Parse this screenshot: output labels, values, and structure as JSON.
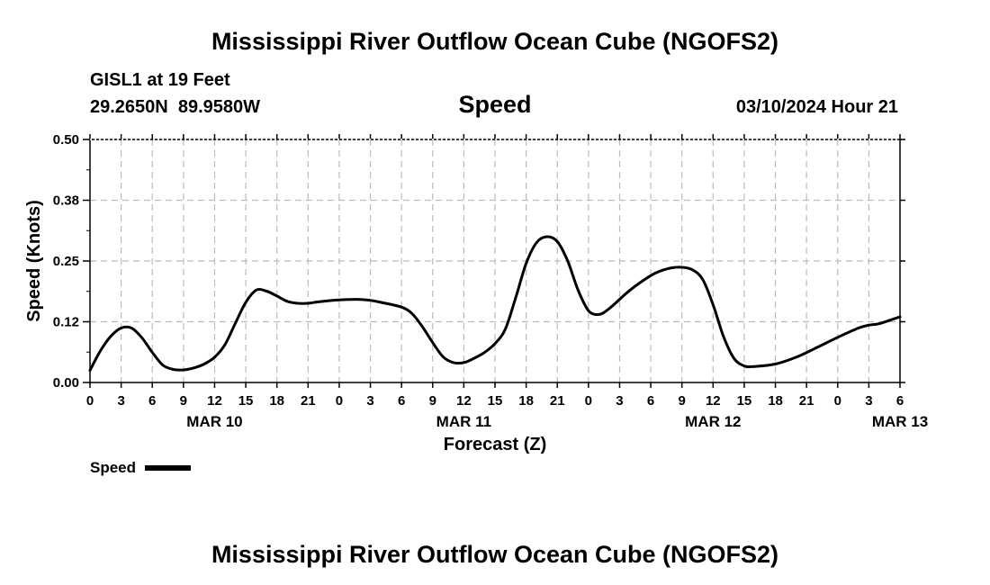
{
  "chart_data": {
    "type": "line",
    "title": "Mississippi River Outflow Ocean Cube (NGOFS2)",
    "footer_title": "Mississippi River Outflow Ocean Cube (NGOFS2)",
    "station_line1": "GISL1 at 19 Feet",
    "station_line2": "29.2650N  89.9580W",
    "subtitle": "Speed",
    "datetime": "03/10/2024 Hour 21",
    "ylabel": "Speed (Knots)",
    "xlabel": "Forecast (Z)",
    "ylim": [
      0,
      0.5
    ],
    "xlim": [
      0,
      78
    ],
    "yticks": [
      0,
      0.125,
      0.25,
      0.375,
      0.5
    ],
    "ytick_labels": [
      "0.00",
      "0.12",
      "0.25",
      "0.38",
      "0.50"
    ],
    "xticks": [
      0,
      3,
      6,
      9,
      12,
      15,
      18,
      21,
      24,
      27,
      30,
      33,
      36,
      39,
      42,
      45,
      48,
      51,
      54,
      57,
      60,
      63,
      66,
      69,
      72,
      75,
      78
    ],
    "xtick_labels": [
      "0",
      "3",
      "6",
      "9",
      "12",
      "15",
      "18",
      "21",
      "0",
      "3",
      "6",
      "9",
      "12",
      "15",
      "18",
      "21",
      "0",
      "3",
      "6",
      "9",
      "12",
      "15",
      "18",
      "21",
      "0",
      "3",
      "6"
    ],
    "date_labels": [
      {
        "hour": 12,
        "label": "MAR 10"
      },
      {
        "hour": 36,
        "label": "MAR 11"
      },
      {
        "hour": 60,
        "label": "MAR 12"
      },
      {
        "hour": 78,
        "label": "MAR 13"
      }
    ],
    "grid": true,
    "legend": {
      "label": "Speed",
      "placement": "bottom-left"
    },
    "series": [
      {
        "name": "Speed",
        "color": "#000000",
        "x": [
          0,
          1,
          2,
          3,
          4,
          5,
          6,
          7,
          8,
          9,
          10,
          11,
          12,
          13,
          14,
          15,
          16,
          17,
          18,
          19,
          20,
          21,
          22,
          24,
          26,
          27,
          28,
          30,
          31,
          32,
          33,
          34,
          35,
          36,
          37,
          38,
          39,
          40,
          41,
          42,
          43,
          44,
          45,
          46,
          47,
          48,
          49,
          50,
          52,
          54,
          55,
          56,
          57,
          58,
          59,
          60,
          61,
          62,
          63,
          64,
          66,
          68,
          70,
          72,
          74,
          75,
          76,
          77,
          78
        ],
        "values": [
          0.025,
          0.065,
          0.095,
          0.112,
          0.112,
          0.092,
          0.062,
          0.036,
          0.027,
          0.026,
          0.03,
          0.038,
          0.052,
          0.078,
          0.122,
          0.165,
          0.19,
          0.188,
          0.178,
          0.167,
          0.163,
          0.163,
          0.166,
          0.17,
          0.171,
          0.169,
          0.165,
          0.155,
          0.142,
          0.115,
          0.082,
          0.053,
          0.041,
          0.041,
          0.05,
          0.062,
          0.08,
          0.11,
          0.175,
          0.245,
          0.288,
          0.3,
          0.29,
          0.25,
          0.19,
          0.148,
          0.14,
          0.152,
          0.19,
          0.22,
          0.23,
          0.236,
          0.237,
          0.232,
          0.212,
          0.16,
          0.095,
          0.05,
          0.034,
          0.033,
          0.038,
          0.052,
          0.072,
          0.093,
          0.112,
          0.118,
          0.121,
          0.128,
          0.135
        ]
      }
    ]
  }
}
